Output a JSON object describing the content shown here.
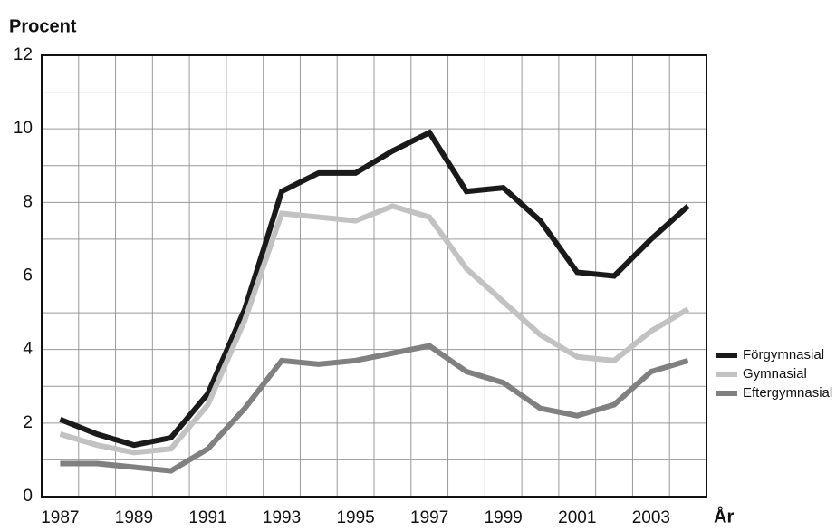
{
  "chart_data": {
    "type": "line",
    "y_label": "Procent",
    "x_label": "År",
    "x": [
      1987,
      1988,
      1989,
      1990,
      1991,
      1992,
      1993,
      1994,
      1995,
      1996,
      1997,
      1998,
      1999,
      2000,
      2001,
      2002,
      2003,
      2004
    ],
    "series": [
      {
        "name": "Förgymnasial",
        "color": "#1a1a1a",
        "values": [
          2.1,
          1.7,
          1.4,
          1.6,
          2.8,
          5.1,
          8.3,
          8.8,
          8.8,
          9.4,
          9.9,
          8.3,
          8.4,
          7.5,
          6.1,
          6.0,
          7.0,
          7.9
        ]
      },
      {
        "name": "Gymnasial",
        "color": "#c2c2c2",
        "values": [
          1.7,
          1.4,
          1.2,
          1.3,
          2.5,
          4.8,
          7.7,
          7.6,
          7.5,
          7.9,
          7.6,
          6.2,
          5.3,
          4.4,
          3.8,
          3.7,
          4.5,
          5.1
        ]
      },
      {
        "name": "Eftergymnasial",
        "color": "#808080",
        "values": [
          0.9,
          0.9,
          0.8,
          0.7,
          1.3,
          2.4,
          3.7,
          3.6,
          3.7,
          3.9,
          4.1,
          3.4,
          3.1,
          2.4,
          2.2,
          2.5,
          3.4,
          3.7
        ]
      }
    ],
    "xlim": [
      1986.5,
      2004.5
    ],
    "xticks": [
      1987,
      1989,
      1991,
      1993,
      1995,
      1997,
      1999,
      2001,
      2003
    ],
    "x_grid": [
      1987.5,
      1988.5,
      1989.5,
      1990.5,
      1991.5,
      1992.5,
      1993.5,
      1994.5,
      1995.5,
      1996.5,
      1997.5,
      1998.5,
      1999.5,
      2000.5,
      2001.5,
      2002.5,
      2003.5
    ],
    "ylim": [
      0,
      12
    ],
    "yticks": [
      0,
      2,
      4,
      6,
      8,
      10,
      12
    ],
    "y_grid": [
      1,
      2,
      3,
      4,
      5,
      6,
      7,
      8,
      9,
      10,
      11
    ],
    "grid": true,
    "legend": "right"
  }
}
